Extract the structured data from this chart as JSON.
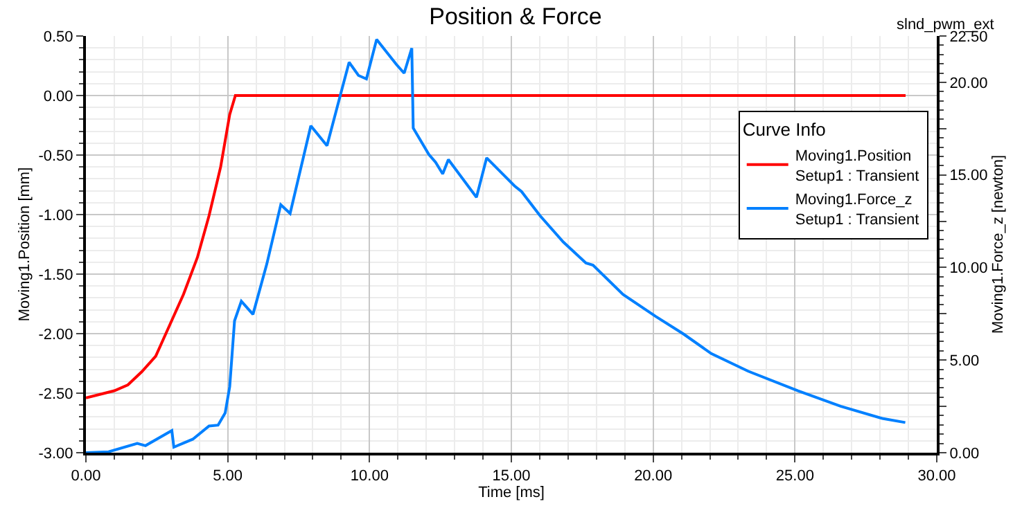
{
  "chart_data": {
    "type": "line",
    "title": "Position & Force",
    "xlabel": "Time [ms]",
    "ylabel": "Moving1.Position [mm]",
    "y2label": "Moving1.Force_z [newton]",
    "legend_title": "Curve Info",
    "annotations": [
      "slnd_pwm_ext"
    ],
    "series": [
      {
        "name": "Moving1.Position\nSetup1 : Transient",
        "color": "#ff0000",
        "x": [
          0,
          1.0,
          1.48,
          1.97,
          2.46,
          2.95,
          3.44,
          3.93,
          4.34,
          4.75,
          5.07,
          5.27,
          28.9
        ],
        "values": [
          -2.54,
          -2.48,
          -2.43,
          -2.32,
          -2.19,
          -1.93,
          -1.67,
          -1.36,
          -1.01,
          -0.6,
          -0.16,
          0.0,
          0.0
        ]
      },
      {
        "name": "Moving1.Force_z\nSetup1 : Transient",
        "color": "#0080ff",
        "axis": "y2",
        "x": [
          0,
          0.8,
          1.81,
          2.1,
          3.03,
          3.1,
          3.77,
          4.34,
          4.66,
          4.91,
          5.07,
          5.24,
          5.48,
          5.89,
          6.38,
          6.87,
          7.2,
          7.93,
          8.5,
          8.99,
          9.28,
          9.61,
          9.89,
          10.25,
          10.95,
          11.22,
          11.49,
          11.54,
          12.09,
          12.33,
          12.58,
          12.78,
          13.77,
          14.13,
          15.11,
          15.36,
          16.01,
          16.83,
          17.63,
          17.88,
          18.94,
          20.09,
          21.07,
          22.05,
          23.35,
          25.11,
          26.61,
          28.08,
          28.89
        ],
        "values": [
          0.0,
          0.05,
          0.5,
          0.38,
          1.2,
          0.3,
          0.73,
          1.44,
          1.49,
          2.15,
          3.57,
          7.12,
          8.18,
          7.47,
          10.2,
          13.39,
          12.92,
          17.65,
          16.58,
          19.42,
          21.08,
          20.37,
          20.18,
          22.31,
          20.96,
          20.49,
          21.84,
          17.53,
          16.11,
          15.68,
          15.05,
          15.83,
          13.79,
          15.92,
          14.41,
          14.1,
          12.8,
          11.38,
          10.24,
          10.13,
          8.54,
          7.36,
          6.41,
          5.35,
          4.4,
          3.34,
          2.51,
          1.85,
          1.63
        ]
      }
    ],
    "xlim": [
      0,
      30
    ],
    "xticks": [
      {
        "value": 0,
        "label": "0.00"
      },
      {
        "value": 5,
        "label": "5.00"
      },
      {
        "value": 10,
        "label": "10.00"
      },
      {
        "value": 15,
        "label": "15.00"
      },
      {
        "value": 20,
        "label": "20.00"
      },
      {
        "value": 25,
        "label": "25.00"
      },
      {
        "value": 30,
        "label": "30.00"
      }
    ],
    "ylim": [
      -3,
      0.5
    ],
    "yticks": [
      {
        "value": -3,
        "label": "-3.00"
      },
      {
        "value": -2.5,
        "label": "-2.50"
      },
      {
        "value": -2,
        "label": "-2.00"
      },
      {
        "value": -1.5,
        "label": "-1.50"
      },
      {
        "value": -1,
        "label": "-1.00"
      },
      {
        "value": -0.5,
        "label": "-0.50"
      },
      {
        "value": 0,
        "label": "0.00"
      },
      {
        "value": 0.5,
        "label": "0.50"
      }
    ],
    "y2lim": [
      0,
      22.5
    ],
    "y2ticks": [
      {
        "value": 0,
        "label": "0.00"
      },
      {
        "value": 2.5,
        "label": null
      },
      {
        "value": 5,
        "label": "5.00"
      },
      {
        "value": 7.5,
        "label": null
      },
      {
        "value": 10,
        "label": "10.00"
      },
      {
        "value": 12.5,
        "label": null
      },
      {
        "value": 15,
        "label": "15.00"
      },
      {
        "value": 17.5,
        "label": null
      },
      {
        "value": 20,
        "label": "20.00"
      },
      {
        "value": 22.5,
        "label": "22.50"
      }
    ],
    "grid": true,
    "legend": "top right",
    "marker": "none",
    "line_style": "solid"
  }
}
